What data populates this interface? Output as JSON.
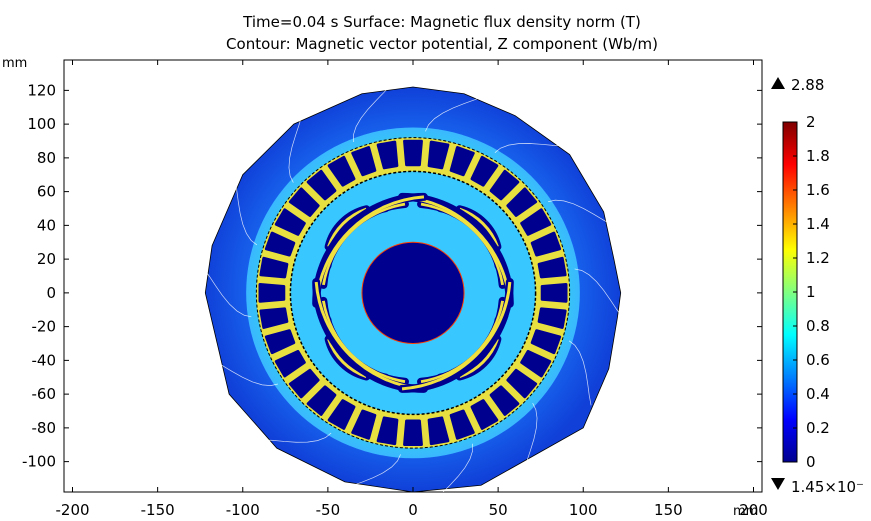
{
  "chart_data": {
    "type": "heatmap",
    "title": "Time=0.04 s   Surface: Magnetic flux density norm (T)",
    "subtitle": "Contour: Magnetic vector potential, Z component (Wb/m)",
    "x_unit": "mm",
    "y_unit": "mm",
    "xlim": [
      -205,
      205
    ],
    "ylim": [
      -118,
      138
    ],
    "x_ticks": [
      -200,
      -150,
      -100,
      -50,
      0,
      50,
      100,
      150,
      200
    ],
    "y_ticks": [
      -100,
      -80,
      -60,
      -40,
      -20,
      0,
      20,
      40,
      60,
      80,
      100,
      120
    ],
    "colorbar": {
      "min": 0,
      "max": 2,
      "ticks": [
        0,
        0.2,
        0.4,
        0.6,
        0.8,
        1,
        1.2,
        1.4,
        1.6,
        1.8,
        2
      ],
      "max_marker": "2.88",
      "min_marker": "1.45×10⁻",
      "colormap": [
        "#00008f",
        "#0000ff",
        "#0080ff",
        "#00ffff",
        "#80ff80",
        "#ffff00",
        "#ff8000",
        "#ff0000",
        "#800000"
      ]
    },
    "geometry": {
      "outer_radius": 122,
      "stator_inner_radius": 92,
      "rotor_outer_radius": 72,
      "shaft_radius": 30,
      "stator_slots": 36,
      "rotor_slots": 28
    }
  }
}
